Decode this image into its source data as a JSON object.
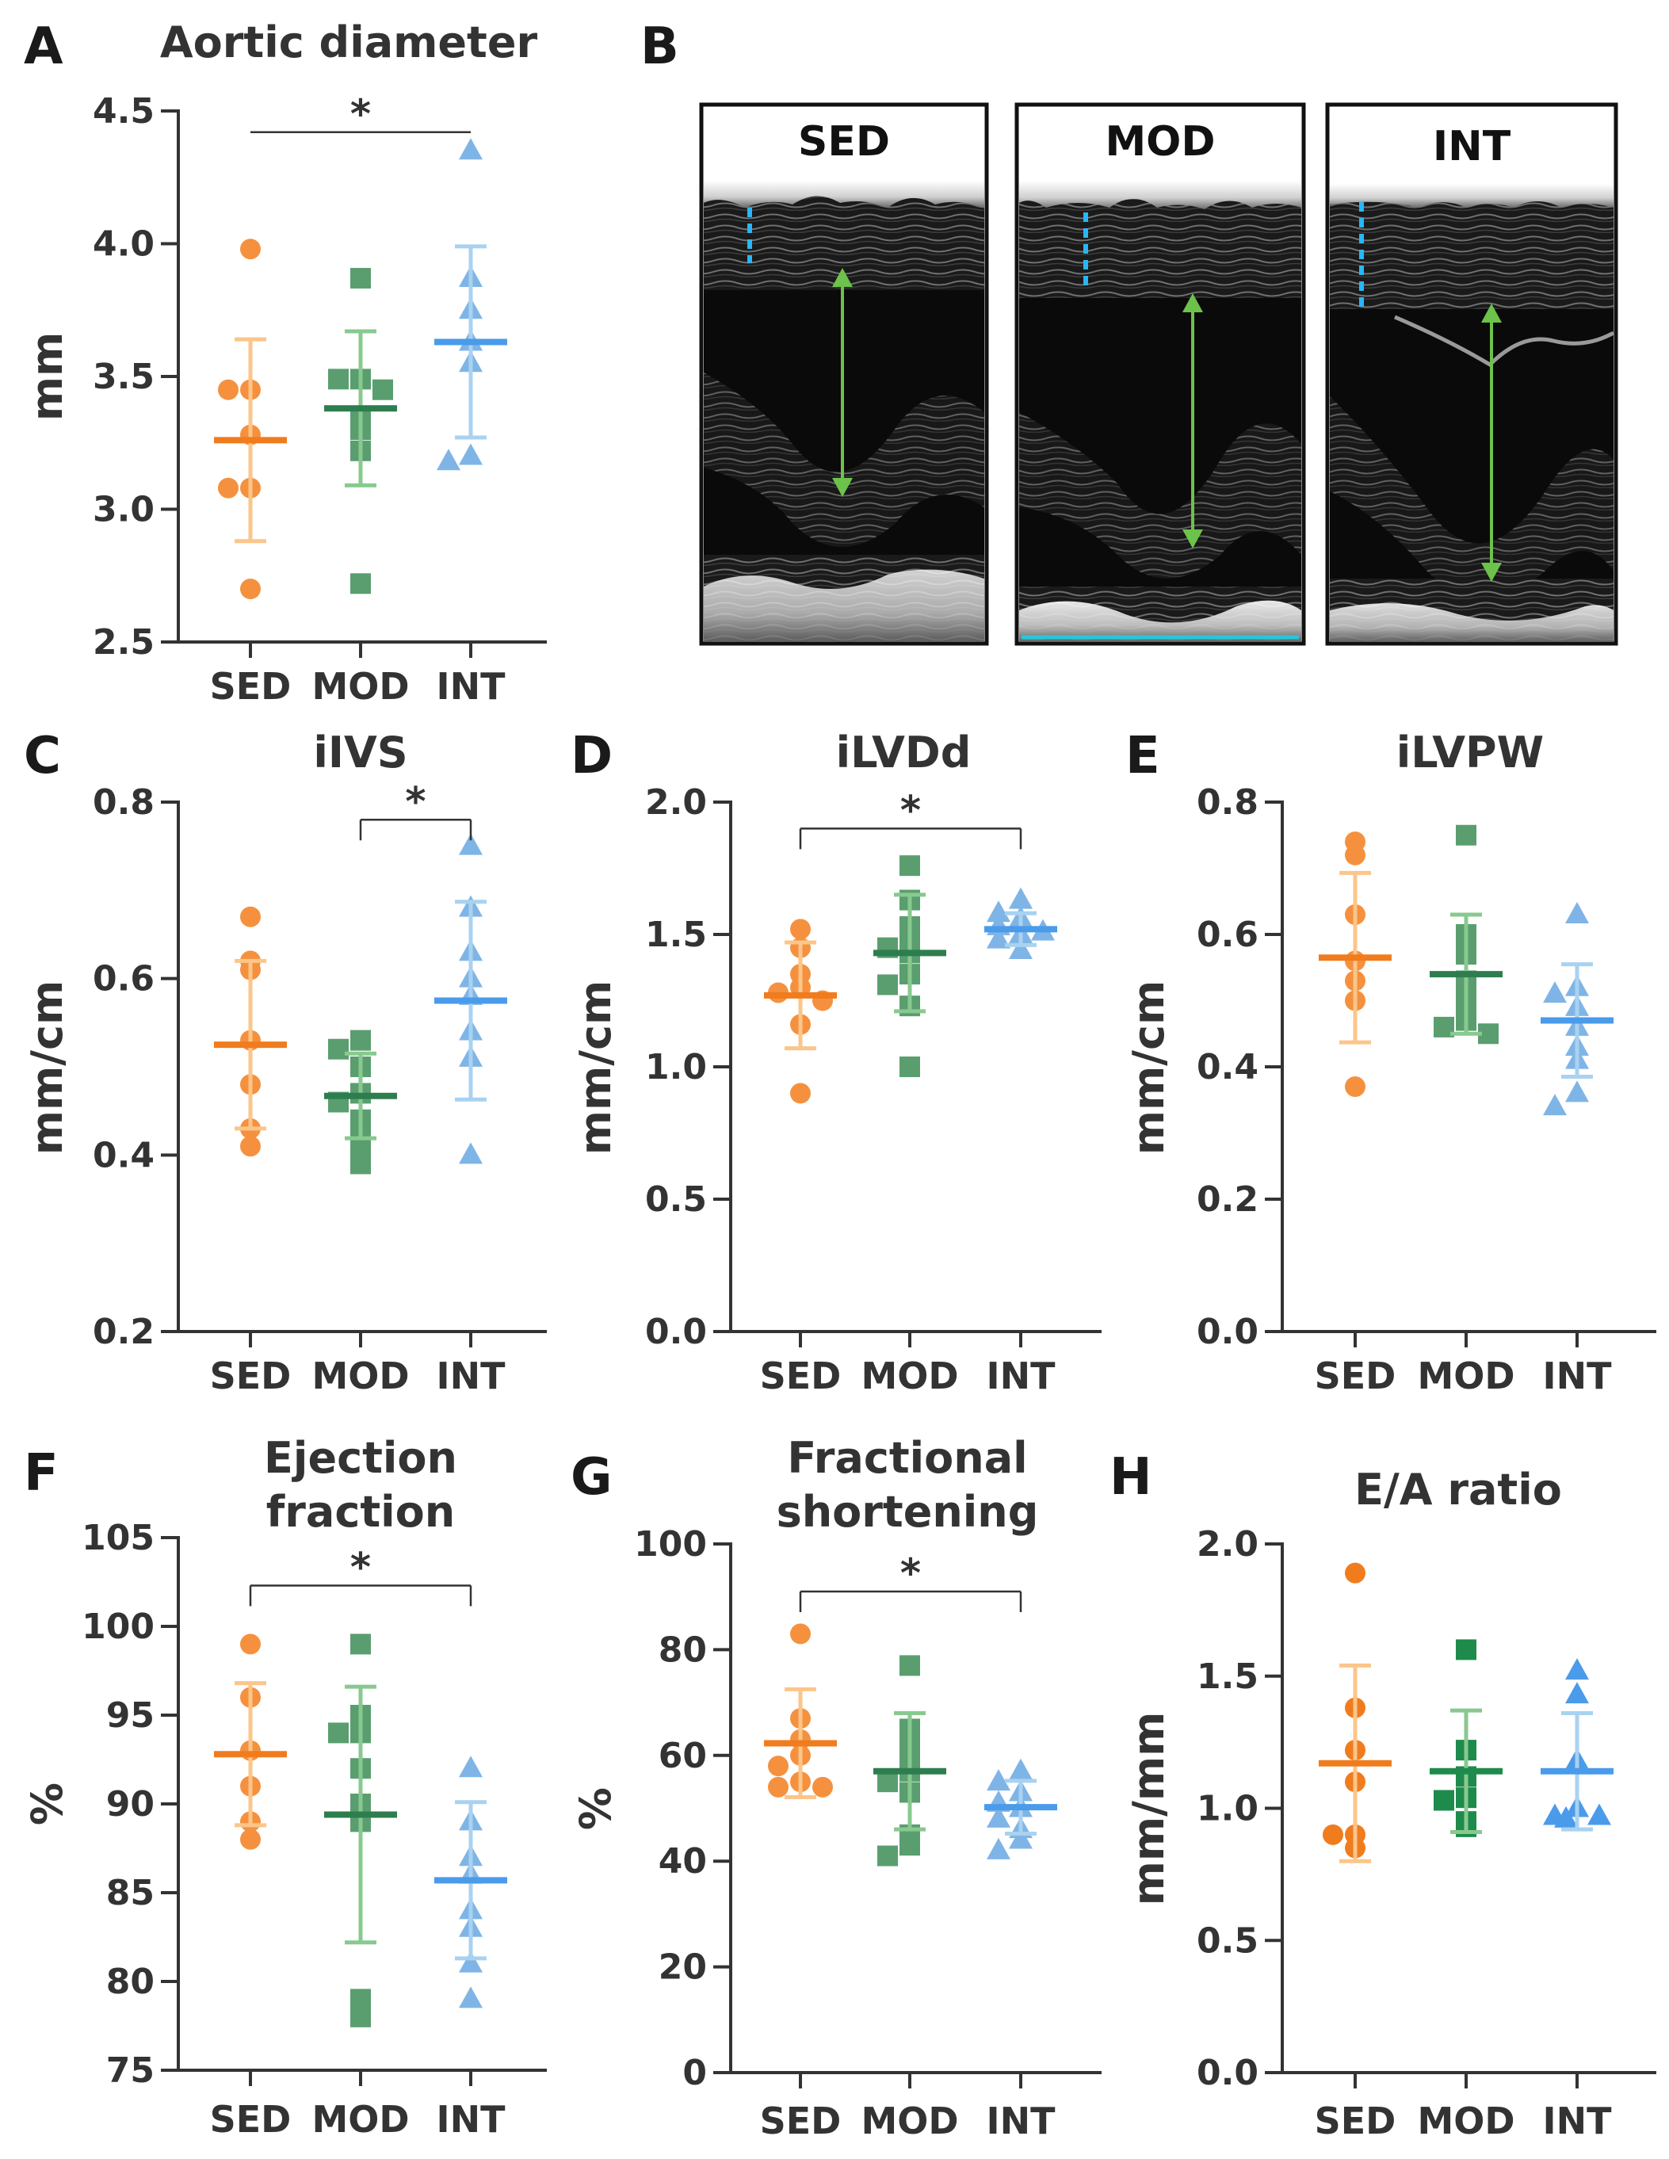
{
  "colors": {
    "SED": {
      "point": "#f5913e",
      "mean": "#f07c1e",
      "err": "#fcc58a"
    },
    "MOD": {
      "point": "#5a9e6f",
      "mean": "#2e7d4f",
      "err": "#88c98f"
    },
    "INT": {
      "point": "#7fb5e6",
      "mean": "#4a9bea",
      "err": "#a9d2f0"
    },
    "SED_dark": {
      "point": "#f07c1e"
    },
    "MOD_dark": {
      "point": "#1e8a4c"
    },
    "INT_dark": {
      "point": "#4a9bea"
    },
    "axis": "#333333",
    "arrow": "#6cc24a",
    "dash": "#29b6f6"
  },
  "panel_b": {
    "letter": "B",
    "images": [
      {
        "label": "SED"
      },
      {
        "label": "MOD"
      },
      {
        "label": "INT"
      }
    ]
  },
  "chart_data": [
    {
      "id": "A",
      "letter": "A",
      "type": "scatter",
      "title": "Aortic diameter",
      "ylabel": "mm",
      "ylim": [
        2.5,
        4.5
      ],
      "yticks": [
        "2.5",
        "3.0",
        "3.5",
        "4.0",
        "4.5"
      ],
      "categories": [
        "SED",
        "MOD",
        "INT"
      ],
      "series": [
        {
          "name": "SED",
          "values": [
            3.98,
            3.45,
            3.45,
            3.28,
            3.08,
            3.08,
            2.7
          ],
          "mean": 3.26,
          "sd": 0.38
        },
        {
          "name": "MOD",
          "values": [
            3.87,
            3.49,
            3.49,
            3.45,
            3.35,
            3.3,
            3.22,
            2.72
          ],
          "mean": 3.38,
          "sd": 0.29
        },
        {
          "name": "INT",
          "values": [
            4.35,
            3.87,
            3.75,
            3.63,
            3.55,
            3.2,
            3.18
          ],
          "mean": 3.63,
          "sd": 0.36
        }
      ],
      "significance": [
        {
          "from": "SED",
          "to": "INT",
          "label": "*",
          "y": 4.42,
          "bracket": false
        }
      ]
    },
    {
      "id": "C",
      "letter": "C",
      "type": "scatter",
      "title": "iIVS",
      "ylabel": "mm/cm",
      "ylim": [
        0.2,
        0.8
      ],
      "yticks": [
        "0.2",
        "0.4",
        "0.6",
        "0.8"
      ],
      "categories": [
        "SED",
        "MOD",
        "INT"
      ],
      "series": [
        {
          "name": "SED",
          "values": [
            0.67,
            0.62,
            0.61,
            0.53,
            0.48,
            0.43,
            0.41
          ],
          "mean": 0.525,
          "sd": 0.095
        },
        {
          "name": "MOD",
          "values": [
            0.53,
            0.52,
            0.5,
            0.47,
            0.46,
            0.44,
            0.42,
            0.4,
            0.39
          ],
          "mean": 0.467,
          "sd": 0.048
        },
        {
          "name": "INT",
          "values": [
            0.75,
            0.68,
            0.63,
            0.6,
            0.58,
            0.54,
            0.51,
            0.4
          ],
          "mean": 0.575,
          "sd": 0.112
        }
      ],
      "significance": [
        {
          "from": "MOD",
          "to": "INT",
          "label": "*",
          "y": 0.78,
          "bracket": true
        }
      ]
    },
    {
      "id": "D",
      "letter": "D",
      "type": "scatter",
      "title": "iLVDd",
      "ylabel": "mm/cm",
      "ylim": [
        0.0,
        2.0
      ],
      "yticks": [
        "0.0",
        "0.5",
        "1.0",
        "1.5",
        "2.0"
      ],
      "categories": [
        "SED",
        "MOD",
        "INT"
      ],
      "series": [
        {
          "name": "SED",
          "values": [
            1.52,
            1.45,
            1.35,
            1.3,
            1.28,
            1.25,
            1.16,
            0.9
          ],
          "mean": 1.27,
          "sd": 0.2
        },
        {
          "name": "MOD",
          "values": [
            1.76,
            1.63,
            1.53,
            1.48,
            1.45,
            1.43,
            1.35,
            1.31,
            1.23,
            1.0
          ],
          "mean": 1.43,
          "sd": 0.22
        },
        {
          "name": "INT",
          "values": [
            1.63,
            1.58,
            1.56,
            1.53,
            1.51,
            1.5,
            1.48,
            1.44
          ],
          "mean": 1.52,
          "sd": 0.06
        }
      ],
      "significance": [
        {
          "from": "SED",
          "to": "INT",
          "label": "*",
          "y": 1.9,
          "bracket": true
        }
      ]
    },
    {
      "id": "E",
      "letter": "E",
      "type": "scatter",
      "title": "iLVPW",
      "ylabel": "mm/cm",
      "ylim": [
        0.0,
        0.8
      ],
      "yticks": [
        "0.0",
        "0.2",
        "0.4",
        "0.6",
        "0.8"
      ],
      "categories": [
        "SED",
        "MOD",
        "INT"
      ],
      "series": [
        {
          "name": "SED",
          "values": [
            0.74,
            0.72,
            0.63,
            0.56,
            0.53,
            0.5,
            0.37
          ],
          "mean": 0.565,
          "sd": 0.128
        },
        {
          "name": "MOD",
          "values": [
            0.75,
            0.6,
            0.57,
            0.53,
            0.5,
            0.48,
            0.47,
            0.46,
            0.45
          ],
          "mean": 0.54,
          "sd": 0.09
        },
        {
          "name": "INT",
          "values": [
            0.63,
            0.52,
            0.51,
            0.49,
            0.46,
            0.43,
            0.41,
            0.36,
            0.34
          ],
          "mean": 0.47,
          "sd": 0.085
        }
      ],
      "significance": []
    },
    {
      "id": "F",
      "letter": "F",
      "type": "scatter",
      "title": "Ejection fraction",
      "title_lines": [
        "Ejection",
        "fraction"
      ],
      "ylabel": "%",
      "ylim": [
        75,
        105
      ],
      "yticks": [
        "75",
        "80",
        "85",
        "90",
        "95",
        "100",
        "105"
      ],
      "categories": [
        "SED",
        "MOD",
        "INT"
      ],
      "series": [
        {
          "name": "SED",
          "values": [
            99.0,
            96.0,
            93.0,
            91.0,
            89.0,
            88.0
          ],
          "mean": 92.8,
          "sd": 4.0
        },
        {
          "name": "MOD",
          "values": [
            99.0,
            95.0,
            94.0,
            94.0,
            92.0,
            90.0,
            89.0,
            79.0,
            78.0
          ],
          "mean": 89.4,
          "sd": 7.2
        },
        {
          "name": "INT",
          "values": [
            92.0,
            89.0,
            87.0,
            86.0,
            84.0,
            83.0,
            81.0,
            79.0
          ],
          "mean": 85.7,
          "sd": 4.4
        }
      ],
      "significance": [
        {
          "from": "SED",
          "to": "INT",
          "label": "*",
          "y": 102.3,
          "bracket": true
        }
      ]
    },
    {
      "id": "G",
      "letter": "G",
      "type": "scatter",
      "title": "Fractional shortening",
      "title_lines": [
        "Fractional",
        "shortening"
      ],
      "ylabel": "%",
      "ylim": [
        0,
        100
      ],
      "yticks": [
        "0",
        "20",
        "40",
        "60",
        "80",
        "100"
      ],
      "categories": [
        "SED",
        "MOD",
        "INT"
      ],
      "series": [
        {
          "name": "SED",
          "values": [
            83,
            67,
            63,
            60,
            58,
            55,
            54,
            54
          ],
          "mean": 62.3,
          "sd": 10.2
        },
        {
          "name": "MOD",
          "values": [
            77,
            65,
            62,
            60,
            57,
            55,
            53,
            45,
            43,
            41
          ],
          "mean": 57.0,
          "sd": 11.0
        },
        {
          "name": "INT",
          "values": [
            57,
            55,
            53,
            51,
            50,
            48,
            46,
            44,
            42
          ],
          "mean": 50.2,
          "sd": 5.0
        }
      ],
      "significance": [
        {
          "from": "SED",
          "to": "INT",
          "label": "*",
          "y": 91,
          "bracket": true
        }
      ]
    },
    {
      "id": "H",
      "letter": "H",
      "type": "scatter",
      "title": "E/A ratio",
      "ylabel": "mm/mm",
      "ylim": [
        0.0,
        2.0
      ],
      "yticks": [
        "0.0",
        "0.5",
        "1.0",
        "1.5",
        "2.0"
      ],
      "categories": [
        "SED",
        "MOD",
        "INT"
      ],
      "dark": true,
      "series": [
        {
          "name": "SED",
          "values": [
            1.89,
            1.38,
            1.22,
            1.1,
            0.9,
            0.9,
            0.85
          ],
          "mean": 1.17,
          "sd": 0.37
        },
        {
          "name": "MOD",
          "values": [
            1.6,
            1.22,
            1.12,
            1.04,
            1.03,
            0.95,
            0.93
          ],
          "mean": 1.14,
          "sd": 0.23
        },
        {
          "name": "INT",
          "values": [
            1.52,
            1.43,
            1.18,
            1.0,
            0.97,
            0.97,
            0.96
          ],
          "mean": 1.14,
          "sd": 0.22
        }
      ],
      "significance": []
    }
  ]
}
